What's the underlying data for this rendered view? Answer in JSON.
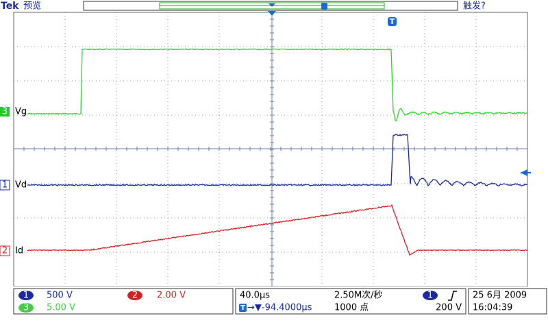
{
  "header": {
    "brand": "Tek",
    "mode": "预览",
    "trigger_status": "触发?"
  },
  "markers": {
    "trigger_position": "T"
  },
  "channels": [
    {
      "number": "3",
      "label": "Vg",
      "color": "#22cc22"
    },
    {
      "number": "1",
      "label": "Vd",
      "color": "#1a2aa0"
    },
    {
      "number": "2",
      "label": "Id",
      "color": "#d42020"
    }
  ],
  "status": {
    "ch1_scale": "500 V",
    "ch2_scale": "2.00 V",
    "ch3_scale": "5.00 V",
    "timebase": "40.0µs",
    "sample_rate": "2.50M次/秒",
    "trigger_offset": "→▼-94.4000µs",
    "record_length": "1000 点",
    "trigger_level": "200 V",
    "date": "25 6月  2009",
    "time": "16:04:39"
  }
}
